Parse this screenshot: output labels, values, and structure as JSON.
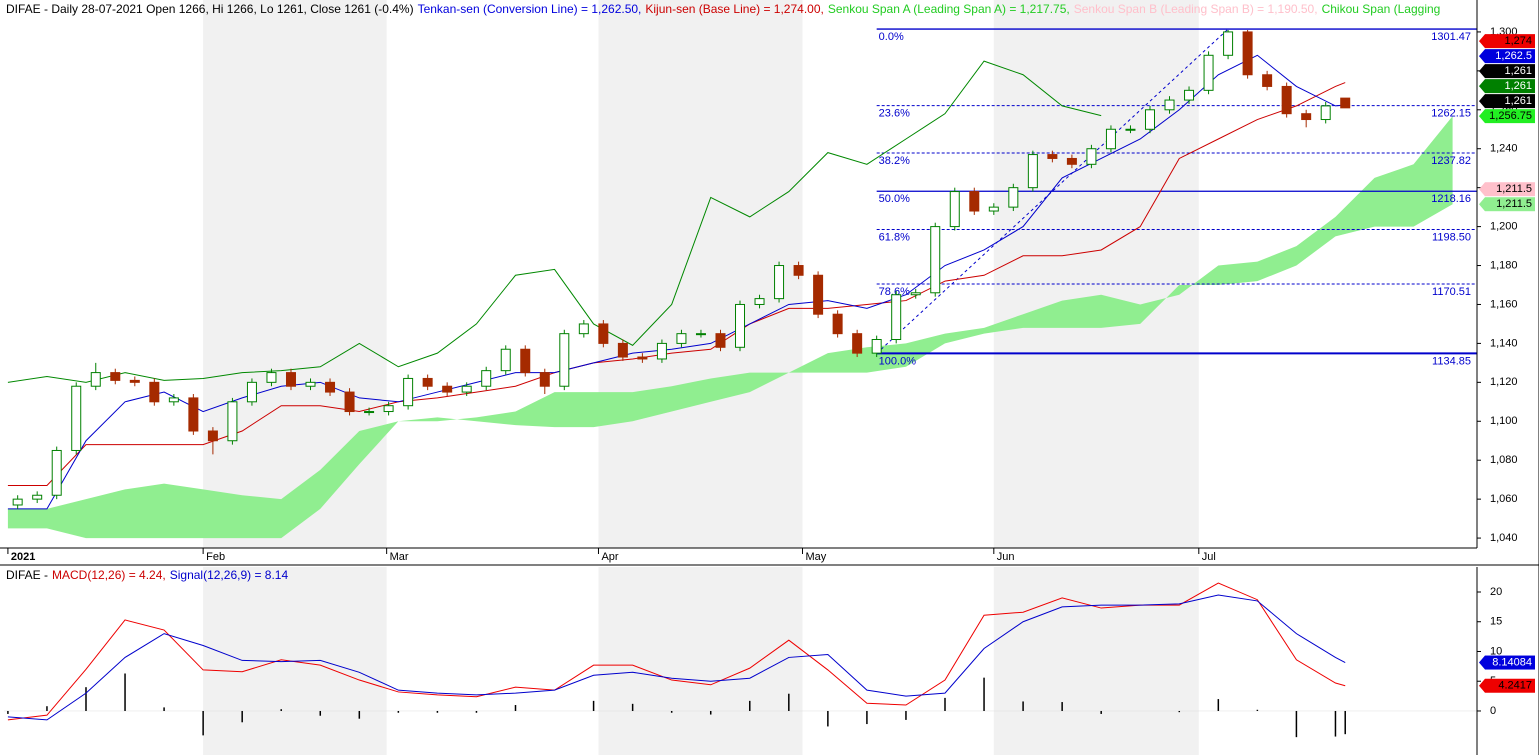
{
  "chart_data": [
    {
      "type": "candlestick",
      "title_parts": [
        {
          "text": "DIFAE - Daily 28-07-2021 Open 1266, Hi 1266, Lo 1261, Close 1261 (-0.4%)",
          "color": "#000000"
        },
        {
          "text": "Tenkan-sen (Conversion Line) = 1,262.50,",
          "color": "#0000dd"
        },
        {
          "text": "Kijun-sen (Base Line) = 1,274.00,",
          "color": "#cc0000"
        },
        {
          "text": "Senkou Span A (Leading Span A) = 1,217.75,",
          "color": "#22cc22"
        },
        {
          "text": "Senkou Span B (Leading Span B) = 1,190.50,",
          "color": "#ffc0cb"
        },
        {
          "text": "Chikou Span (Lagging",
          "color": "#22cc22"
        }
      ],
      "xlim": [
        -0.4,
        150.5
      ],
      "xticks": [
        {
          "value": 0,
          "label": "2021"
        },
        {
          "value": 20,
          "label": "Feb"
        },
        {
          "value": 38.8,
          "label": "Mar"
        },
        {
          "value": 60.5,
          "label": "Apr"
        },
        {
          "value": 81.4,
          "label": "May"
        },
        {
          "value": 101,
          "label": "Jun"
        },
        {
          "value": 122,
          "label": "Jul"
        }
      ],
      "ylim": [
        1034.9,
        1316.4
      ],
      "yticks": [
        {
          "value": 1040,
          "label": "1,040"
        },
        {
          "value": 1060,
          "label": "1,060"
        },
        {
          "value": 1080,
          "label": "1,080"
        },
        {
          "value": 1100,
          "label": "1,100"
        },
        {
          "value": 1120,
          "label": "1,120"
        },
        {
          "value": 1140,
          "label": "1,140"
        },
        {
          "value": 1160,
          "label": "1,160"
        },
        {
          "value": 1180,
          "label": "1,180"
        },
        {
          "value": 1200,
          "label": "1,200"
        },
        {
          "value": 1220,
          "label": "1,220"
        },
        {
          "value": 1240,
          "label": "1,240"
        },
        {
          "value": 1260,
          "label": "1,260"
        },
        {
          "value": 1280,
          "label": "1,280"
        },
        {
          "value": 1300,
          "label": "1,300"
        }
      ],
      "candles": {
        "up_color": "#008000",
        "down_color": "#a52a00",
        "x": [
          1,
          3,
          5,
          7,
          9,
          11,
          13,
          15,
          17,
          19,
          21,
          23,
          25,
          27,
          29,
          31,
          33,
          35,
          37,
          39,
          41,
          43,
          45,
          47,
          49,
          51,
          53,
          55,
          57,
          59,
          61,
          63,
          65,
          67,
          69,
          71,
          73,
          75,
          77,
          79,
          81,
          83,
          85,
          87,
          89,
          91,
          93,
          95,
          97,
          99,
          101,
          103,
          105,
          107,
          109,
          111,
          113,
          115,
          117,
          119,
          121,
          123,
          125,
          127,
          129,
          131,
          133,
          135,
          137
        ],
        "open": [
          1057,
          1060,
          1062,
          1085,
          1118,
          1125,
          1121,
          1120,
          1110,
          1112,
          1095,
          1090,
          1110,
          1120,
          1125,
          1118,
          1120,
          1115,
          1105,
          1105,
          1108,
          1122,
          1118,
          1115,
          1118,
          1126,
          1137,
          1125,
          1118,
          1145,
          1150,
          1140,
          1133,
          1132,
          1140,
          1145,
          1145,
          1138,
          1160,
          1163,
          1180,
          1175,
          1155,
          1145,
          1135,
          1142,
          1165,
          1166,
          1200,
          1218,
          1208,
          1210,
          1220,
          1237,
          1235,
          1232,
          1240,
          1250,
          1250,
          1260,
          1265,
          1270,
          1288,
          1300,
          1278,
          1272,
          1258,
          1255,
          1266
        ],
        "high": [
          1062,
          1064,
          1087,
          1120,
          1130,
          1127,
          1123,
          1122,
          1114,
          1114,
          1097,
          1112,
          1122,
          1127,
          1127,
          1122,
          1122,
          1117,
          1107,
          1110,
          1124,
          1124,
          1120,
          1120,
          1128,
          1139,
          1139,
          1127,
          1147,
          1152,
          1152,
          1142,
          1135,
          1142,
          1147,
          1147,
          1147,
          1162,
          1165,
          1182,
          1182,
          1177,
          1157,
          1147,
          1144,
          1167,
          1168,
          1202,
          1220,
          1220,
          1212,
          1222,
          1239,
          1239,
          1237,
          1242,
          1252,
          1252,
          1262,
          1267,
          1272,
          1290,
          1301,
          1301,
          1280,
          1274,
          1260,
          1264,
          1266
        ],
        "low": [
          1055,
          1058,
          1060,
          1083,
          1116,
          1119,
          1118,
          1108,
          1108,
          1093,
          1083,
          1088,
          1108,
          1118,
          1116,
          1116,
          1113,
          1103,
          1103,
          1103,
          1106,
          1116,
          1113,
          1113,
          1116,
          1124,
          1123,
          1114,
          1116,
          1143,
          1138,
          1131,
          1130,
          1130,
          1138,
          1143,
          1136,
          1136,
          1158,
          1161,
          1173,
          1153,
          1143,
          1133,
          1133,
          1140,
          1163,
          1164,
          1198,
          1206,
          1206,
          1208,
          1218,
          1233,
          1230,
          1230,
          1238,
          1248,
          1248,
          1258,
          1263,
          1268,
          1286,
          1276,
          1270,
          1256,
          1251,
          1253,
          1261
        ],
        "close": [
          1060,
          1062,
          1085,
          1118,
          1125,
          1121,
          1120,
          1110,
          1112,
          1095,
          1090,
          1110,
          1120,
          1125,
          1118,
          1120,
          1115,
          1105,
          1105,
          1108,
          1122,
          1118,
          1115,
          1118,
          1126,
          1137,
          1125,
          1118,
          1145,
          1150,
          1140,
          1133,
          1132,
          1140,
          1145,
          1145,
          1138,
          1160,
          1163,
          1180,
          1175,
          1155,
          1145,
          1135,
          1142,
          1165,
          1166,
          1200,
          1218,
          1208,
          1210,
          1220,
          1237,
          1235,
          1232,
          1240,
          1250,
          1250,
          1260,
          1265,
          1270,
          1288,
          1300,
          1278,
          1272,
          1258,
          1255,
          1262,
          1261
        ]
      },
      "cloud": {
        "color": "#90ee90",
        "x": [
          0,
          4,
          8,
          12,
          16,
          20,
          24,
          28,
          32,
          36,
          40,
          44,
          48,
          52,
          56,
          60,
          64,
          68,
          72,
          76,
          80,
          84,
          88,
          92,
          96,
          100,
          104,
          108,
          112,
          116,
          120,
          124,
          128,
          132,
          136,
          140,
          144,
          148
        ],
        "span_a": [
          1055,
          1055,
          1060,
          1065,
          1068,
          1065,
          1062,
          1060,
          1075,
          1095,
          1100,
          1100,
          1102,
          1105,
          1115,
          1115,
          1115,
          1118,
          1122,
          1125,
          1125,
          1135,
          1138,
          1140,
          1145,
          1148,
          1155,
          1162,
          1165,
          1160,
          1165,
          1180,
          1182,
          1190,
          1205,
          1225,
          1232,
          1256.75
        ],
        "span_b": [
          1045,
          1045,
          1040,
          1040,
          1040,
          1040,
          1040,
          1040,
          1055,
          1078,
          1100,
          1102,
          1100,
          1098,
          1097,
          1097,
          1100,
          1105,
          1110,
          1115,
          1125,
          1125,
          1125,
          1128,
          1140,
          1145,
          1148,
          1148,
          1148,
          1150,
          1170,
          1170,
          1172,
          1180,
          1195,
          1200,
          1200,
          1211.5
        ]
      },
      "series": [
        {
          "color": "#008800",
          "x": [
            0,
            4,
            8,
            12,
            16,
            20,
            24,
            28,
            32,
            36,
            40,
            44,
            48,
            52,
            56,
            60,
            64,
            68,
            72,
            76,
            80,
            84,
            88,
            92,
            96,
            100,
            104,
            108,
            112
          ],
          "values": [
            1120,
            1123,
            1120,
            1125,
            1121,
            1122,
            1125,
            1126,
            1128,
            1140,
            1128,
            1135,
            1150,
            1175,
            1178,
            1150,
            1139,
            1160,
            1215,
            1205,
            1218,
            1238,
            1232,
            1245,
            1258,
            1285,
            1278,
            1262,
            1257
          ]
        },
        {
          "color": "#cc0000",
          "x": [
            0,
            4,
            8,
            12,
            16,
            20,
            24,
            28,
            32,
            36,
            40,
            44,
            48,
            52,
            56,
            60,
            64,
            68,
            72,
            76,
            80,
            84,
            88,
            92,
            96,
            100,
            104,
            108,
            112,
            116,
            120,
            124,
            128,
            132,
            136,
            137
          ],
          "values": [
            1067,
            1067,
            1088,
            1088,
            1088,
            1088,
            1095,
            1108,
            1108,
            1105,
            1110,
            1112,
            1115,
            1118,
            1125,
            1130,
            1132,
            1135,
            1137,
            1150,
            1158,
            1158,
            1160,
            1162,
            1172,
            1175,
            1185,
            1185,
            1188,
            1200,
            1235,
            1245,
            1255,
            1262,
            1272,
            1274
          ]
        },
        {
          "color": "#0000cc",
          "x": [
            0,
            4,
            8,
            12,
            16,
            20,
            24,
            28,
            32,
            36,
            40,
            44,
            48,
            52,
            56,
            60,
            64,
            68,
            72,
            76,
            80,
            84,
            88,
            92,
            96,
            100,
            104,
            108,
            112,
            116,
            120,
            124,
            128,
            132,
            136,
            137
          ],
          "values": [
            1055,
            1055,
            1090,
            1110,
            1115,
            1105,
            1112,
            1118,
            1120,
            1112,
            1110,
            1115,
            1120,
            1125,
            1125,
            1130,
            1135,
            1137,
            1140,
            1150,
            1160,
            1162,
            1158,
            1165,
            1180,
            1188,
            1200,
            1225,
            1235,
            1245,
            1260,
            1278,
            1288,
            1272,
            1262,
            1262.5
          ]
        }
      ],
      "fibonacci": {
        "color": "#0000cc",
        "anchor_x": [
          89,
          125
        ],
        "levels": [
          {
            "label": "0.0%",
            "price": 1301.47,
            "style": "solid"
          },
          {
            "label": "23.6%",
            "price": 1262.15,
            "style": "dashed"
          },
          {
            "label": "38.2%",
            "price": 1237.82,
            "style": "dashed"
          },
          {
            "label": "50.0%",
            "price": 1218.16,
            "style": "solid"
          },
          {
            "label": "61.8%",
            "price": {
              "value": 1198.5,
              "label": "1198.50"
            },
            "style": "dashed"
          },
          {
            "label": "78.6%",
            "price": 1170.51,
            "style": "dashed"
          },
          {
            "label": "100.0%",
            "price": 1134.85,
            "style": "solid"
          }
        ]
      },
      "price_tags": [
        {
          "label": "1,274",
          "value": 1274,
          "color": "#ee0000",
          "text_color": "#000000"
        },
        {
          "label": "1,262.5",
          "value": 1262.5,
          "color": "#0000dd",
          "text_color": "#ffffff"
        },
        {
          "label": "1,261",
          "value": 1261,
          "color": "#000000",
          "text_color": "#ffffff"
        },
        {
          "label": "1,261",
          "value": 1261,
          "color": "#008000",
          "text_color": "#ffffff"
        },
        {
          "label": "1,261",
          "value": 1261,
          "color": "#000000",
          "text_color": "#ffffff"
        },
        {
          "label": "1,256.75",
          "value": 1256.75,
          "color": "#22ee22",
          "text_color": "#000000"
        },
        {
          "label": "1,211.5",
          "value": 1211.5,
          "color": "#ffc0cb",
          "text_color": "#000000"
        },
        {
          "label": "1,211.5",
          "value": 1211.5,
          "color": "#90ee90",
          "text_color": "#000000"
        }
      ]
    },
    {
      "type": "macd",
      "title_parts": [
        {
          "text": "DIFAE -",
          "color": "#000000"
        },
        {
          "text": "MACD(12,26) = 4.24,",
          "color": "#cc0000"
        },
        {
          "text": "Signal(12,26,9) = 8.14",
          "color": "#0000cc"
        }
      ],
      "ylim": [
        -7.4,
        24.2
      ],
      "yticks": [
        0,
        5,
        10,
        15,
        20
      ],
      "x": [
        0,
        4,
        8,
        12,
        16,
        20,
        24,
        28,
        32,
        36,
        40,
        44,
        48,
        52,
        56,
        60,
        64,
        68,
        72,
        76,
        80,
        84,
        88,
        92,
        96,
        100,
        104,
        108,
        112,
        116,
        120,
        124,
        128,
        132,
        136,
        137
      ],
      "series": [
        {
          "color": "#ee0000",
          "values": [
            -1.5,
            -0.7,
            7,
            15.3,
            13.6,
            6.9,
            6.6,
            8.6,
            7.7,
            5.2,
            3.2,
            2.7,
            2.4,
            4,
            3.5,
            7.7,
            7.7,
            5.2,
            4.4,
            7.2,
            11.9,
            6.9,
            1.3,
            1,
            5.2,
            16.1,
            16.6,
            19,
            17.3,
            17.8,
            17.8,
            21.5,
            18.7,
            8.6,
            4.7,
            4.24
          ]
        },
        {
          "color": "#0000cc",
          "values": [
            -1,
            -1.5,
            3,
            9,
            13,
            11,
            8.5,
            8.3,
            8.5,
            6.5,
            3.5,
            3,
            2.7,
            3,
            3.5,
            6,
            6.5,
            5.5,
            5,
            5.5,
            9,
            9.5,
            3.5,
            2.5,
            3,
            10.5,
            15,
            17.5,
            17.8,
            17.8,
            18,
            19.5,
            18.5,
            13,
            9,
            8.14
          ]
        }
      ],
      "histogram": {
        "color": "#000000",
        "values": [
          -0.5,
          0.8,
          4,
          6.3,
          0.6,
          -4.1,
          -1.9,
          0.3,
          -0.8,
          -1.3,
          -0.3,
          -0.3,
          -0.3,
          1,
          0,
          1.7,
          1.2,
          -0.3,
          -0.6,
          1.7,
          2.9,
          -2.6,
          -2.2,
          -1.5,
          2.2,
          5.6,
          1.6,
          1.5,
          -0.5,
          0,
          -0.2,
          2,
          0.2,
          -4.4,
          -4.3,
          -3.9
        ]
      },
      "price_tags": [
        {
          "value": 8.14084,
          "color": "#0000dd",
          "text_color": "#ffffff"
        },
        {
          "value": 4.2417,
          "color": "#ee0000",
          "text_color": "#000000"
        }
      ]
    }
  ]
}
